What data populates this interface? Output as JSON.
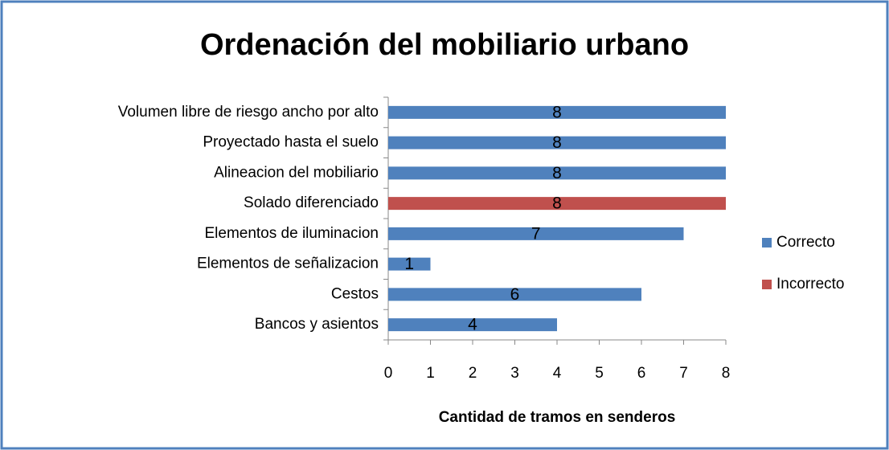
{
  "chart_data": {
    "type": "bar",
    "orientation": "horizontal",
    "title": "Ordenación del mobiliario urbano",
    "x_label": "Cantidad de tramos en senderos",
    "categories": [
      "Volumen libre de riesgo ancho por alto",
      "Proyectado hasta el suelo",
      "Alineacion del mobiliario",
      "Solado diferenciado",
      "Elementos de iluminacion",
      "Elementos de señalizacion",
      "Cestos",
      "Bancos y asientos"
    ],
    "series": [
      {
        "name": "Correcto",
        "color": "#4f81bd",
        "values": [
          8,
          8,
          8,
          null,
          7,
          1,
          6,
          4
        ]
      },
      {
        "name": "Incorrecto",
        "color": "#c0504d",
        "values": [
          null,
          null,
          null,
          8,
          null,
          null,
          null,
          null
        ]
      }
    ],
    "xlim": [
      0,
      8
    ],
    "xticks": [
      0,
      1,
      2,
      3,
      4,
      5,
      6,
      7,
      8
    ],
    "legend": "right"
  }
}
